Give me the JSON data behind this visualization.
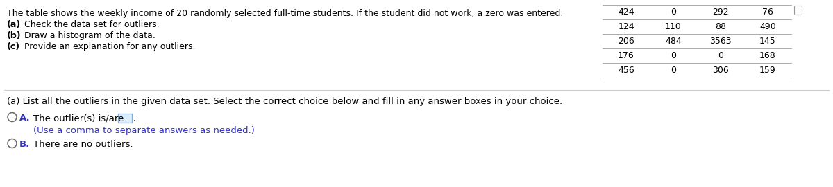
{
  "intro_text": "The table shows the weekly income of 20 randomly selected full-time students. If the student did not work, a zero was entered.",
  "bullet_a_bold": "(a)",
  "bullet_a_rest": " Check the data set for outliers.",
  "bullet_b_bold": "(b)",
  "bullet_b_rest": " Draw a histogram of the data.",
  "bullet_c_bold": "(c)",
  "bullet_c_rest": " Provide an explanation for any outliers.",
  "table": [
    [
      424,
      0,
      292,
      76
    ],
    [
      124,
      110,
      88,
      490
    ],
    [
      206,
      484,
      3563,
      145
    ],
    [
      176,
      0,
      0,
      168
    ],
    [
      456,
      0,
      306,
      159
    ]
  ],
  "question_text": "(a) List all the outliers in the given data set. Select the correct choice below and fill in any answer boxes in your choice.",
  "choice_A_label": "A.",
  "choice_A_text": "The outlier(s) is/are",
  "choice_A_hint": "(Use a comma to separate answers as needed.)",
  "choice_B_label": "B.",
  "choice_B_text": "There are no outliers.",
  "text_color": "#000000",
  "blue_color": "#3333cc",
  "table_line_color": "#aaaaaa",
  "bg_color": "#ffffff",
  "fig_width": 12.0,
  "fig_height": 2.7
}
